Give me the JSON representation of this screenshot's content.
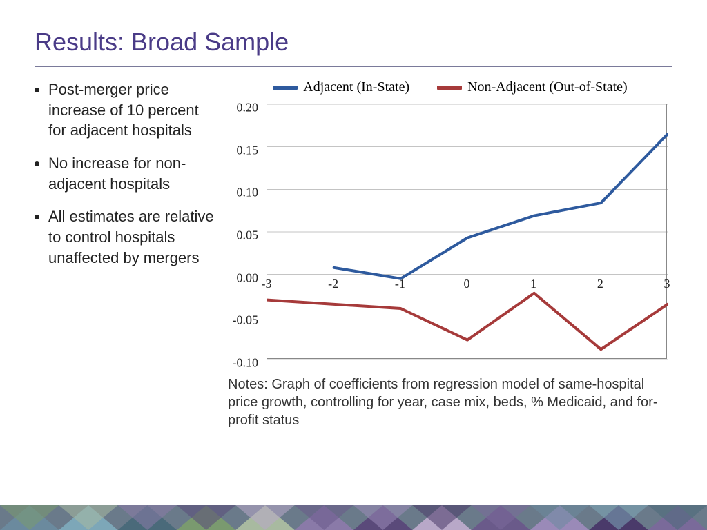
{
  "title": "Results: Broad Sample",
  "bullets": [
    "Post-merger price increase of 10 percent for adjacent hospitals",
    "No increase for non-adjacent hospitals",
    "All estimates are relative to control hospitals unaffected by mergers"
  ],
  "chart": {
    "type": "line",
    "legend": [
      {
        "label": "Adjacent (In-State)",
        "color": "#2e5a9e"
      },
      {
        "label": "Non-Adjacent (Out-of-State)",
        "color": "#a63a3a"
      }
    ],
    "x_values": [
      -3,
      -2,
      -1,
      0,
      1,
      2,
      3
    ],
    "x_lim": [
      -3,
      3
    ],
    "y_lim": [
      -0.1,
      0.2
    ],
    "y_ticks": [
      -0.1,
      -0.05,
      0.0,
      0.05,
      0.1,
      0.15,
      0.2
    ],
    "y_tick_labels": [
      "-0.10",
      "-0.05",
      "0.00",
      "0.05",
      "0.10",
      "0.15",
      "0.20"
    ],
    "series": [
      {
        "name": "Adjacent (In-State)",
        "color": "#2e5a9e",
        "line_width": 4,
        "y": [
          null,
          0.008,
          -0.005,
          0.043,
          0.069,
          0.084,
          0.165
        ]
      },
      {
        "name": "Non-Adjacent (Out-of-State)",
        "color": "#a63a3a",
        "line_width": 4,
        "y": [
          -0.03,
          -0.035,
          -0.04,
          -0.077,
          -0.022,
          -0.088,
          -0.035
        ]
      }
    ],
    "axis_font": "Times New Roman",
    "axis_fontsize": 18,
    "border_color": "#888888",
    "background_color": "#ffffff"
  },
  "notes": "Notes: Graph of coefficients from regression model of same-hospital price growth, controlling for year, case mix, beds, % Medicaid, and for-profit status",
  "footer_colors": [
    "#6b8a9e",
    "#7da7b8",
    "#4a6a7a",
    "#7a9a6f",
    "#a8baa0",
    "#8a7aa8",
    "#5a4a7a",
    "#b8a8c8",
    "#6a5a8a",
    "#9a8ab8",
    "#4a3a6a",
    "#7a6a9a"
  ]
}
